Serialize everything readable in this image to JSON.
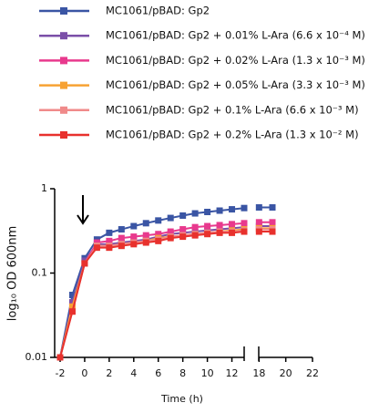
{
  "chart_data": {
    "type": "line",
    "ylabel": "log₁₀ OD 600nm",
    "xlabel": "Time (h)",
    "x": [
      -2,
      -1,
      0,
      1,
      2,
      3,
      4,
      5,
      6,
      7,
      8,
      9,
      10,
      11,
      12,
      13,
      18,
      19
    ],
    "series": [
      {
        "name": "MC1061/pBAD: Gp2",
        "color": "#3a55a4",
        "values": [
          0.01,
          0.055,
          0.15,
          0.25,
          0.3,
          0.33,
          0.36,
          0.39,
          0.42,
          0.45,
          0.48,
          0.51,
          0.53,
          0.55,
          0.57,
          0.59,
          0.6,
          0.6
        ]
      },
      {
        "name": "MC1061/pBAD: Gp2 + 0.01% L-Ara (6.6 x 10⁻⁴ M)",
        "color": "#7b4fa8",
        "values": [
          0.01,
          0.045,
          0.14,
          0.22,
          0.22,
          0.23,
          0.24,
          0.25,
          0.27,
          0.29,
          0.3,
          0.31,
          0.32,
          0.33,
          0.34,
          0.35,
          0.36,
          0.36
        ]
      },
      {
        "name": "MC1061/pBAD: Gp2 + 0.02% L-Ara (1.3 x 10⁻³ M)",
        "color": "#e8398d",
        "values": [
          0.01,
          0.04,
          0.13,
          0.23,
          0.24,
          0.26,
          0.27,
          0.28,
          0.29,
          0.31,
          0.33,
          0.35,
          0.36,
          0.37,
          0.38,
          0.39,
          0.4,
          0.4
        ]
      },
      {
        "name": "MC1061/pBAD: Gp2 + 0.05% L-Ara (3.3 x 10⁻³ M)",
        "color": "#f7a233",
        "values": [
          0.01,
          0.04,
          0.13,
          0.21,
          0.21,
          0.22,
          0.23,
          0.24,
          0.26,
          0.27,
          0.28,
          0.29,
          0.3,
          0.31,
          0.32,
          0.33,
          0.34,
          0.34
        ]
      },
      {
        "name": "MC1061/pBAD: Gp2 +  0.1% L-Ara (6.6 x 10⁻³ M)",
        "color": "#f08a8a",
        "values": [
          0.01,
          0.035,
          0.13,
          0.21,
          0.21,
          0.22,
          0.23,
          0.24,
          0.25,
          0.27,
          0.28,
          0.29,
          0.3,
          0.31,
          0.31,
          0.32,
          0.33,
          0.33
        ]
      },
      {
        "name": "MC1061/pBAD: Gp2 +  0.2% L-Ara (1.3 x 10⁻² M)",
        "color": "#e8312d",
        "values": [
          0.01,
          0.035,
          0.13,
          0.2,
          0.2,
          0.21,
          0.22,
          0.23,
          0.24,
          0.26,
          0.27,
          0.28,
          0.29,
          0.3,
          0.3,
          0.31,
          0.31,
          0.31
        ]
      }
    ],
    "xlim": [
      -2,
      22
    ],
    "xbreak": [
      13,
      17.5
    ],
    "xticks": [
      -2,
      0,
      2,
      4,
      6,
      8,
      10,
      12,
      18,
      20,
      22
    ],
    "ylim": [
      0.01,
      1
    ],
    "yticks": [
      0.01,
      0.1,
      1
    ],
    "ylog": true
  }
}
